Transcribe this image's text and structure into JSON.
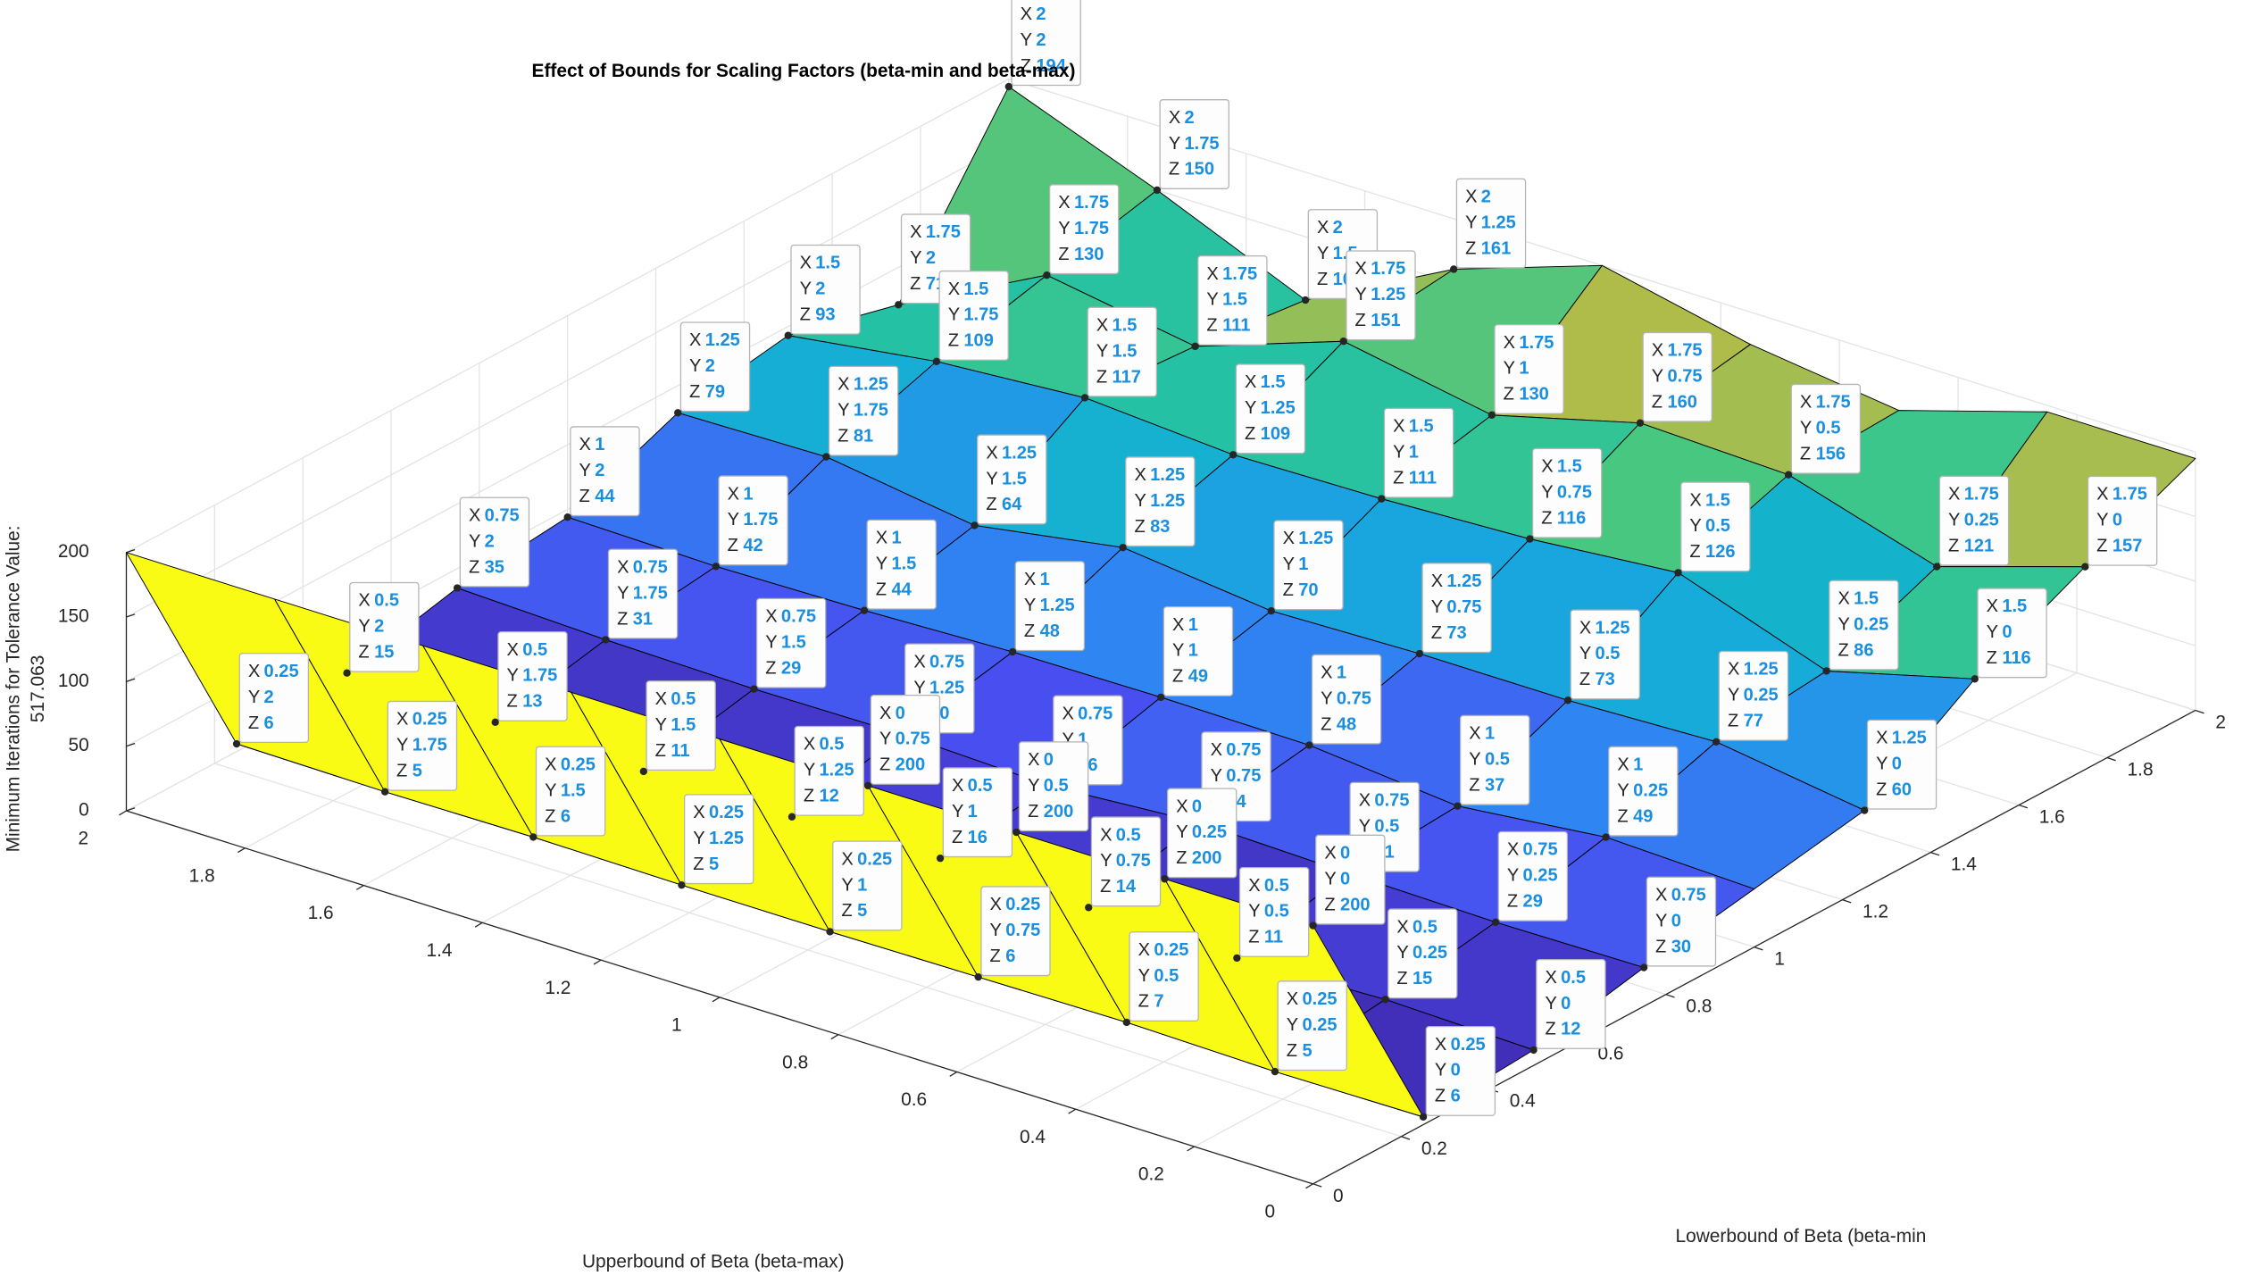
{
  "chart_data": {
    "type": "surface3d",
    "title": "Effect of Bounds for Scaling Factors (beta-min and beta-max)",
    "xlabel": "Lowerbound of Beta (beta-min",
    "ylabel": "Upperbound of Beta (beta-max)",
    "zlabel": [
      "Minimum Iterations for Tolerance Value:",
      "517.063"
    ],
    "x": [
      0,
      0.25,
      0.5,
      0.75,
      1,
      1.25,
      1.5,
      1.75,
      2
    ],
    "y": [
      0,
      0.25,
      0.5,
      0.75,
      1,
      1.25,
      1.5,
      1.75,
      2
    ],
    "z": [
      [
        200,
        200,
        200,
        200,
        200,
        200,
        200,
        200,
        200
      ],
      [
        6,
        5,
        7,
        6,
        5,
        5,
        6,
        5,
        6
      ],
      [
        12,
        15,
        11,
        14,
        16,
        12,
        11,
        13,
        15
      ],
      [
        30,
        29,
        31,
        34,
        26,
        30,
        29,
        31,
        35
      ],
      [
        45,
        49,
        37,
        48,
        49,
        48,
        44,
        42,
        44
      ],
      [
        60,
        77,
        73,
        73,
        70,
        83,
        64,
        81,
        79
      ],
      [
        116,
        86,
        126,
        116,
        111,
        109,
        117,
        109,
        93
      ],
      [
        157,
        121,
        156,
        160,
        130,
        151,
        111,
        130,
        71
      ],
      [
        195,
        195,
        160,
        175,
        200,
        161,
        101,
        150,
        194
      ]
    ],
    "colormap": "parula",
    "edge_color": "#000000",
    "xlim": [
      0,
      2
    ],
    "ylim": [
      0,
      2
    ],
    "zlim": [
      0,
      200
    ],
    "xticks": [
      0,
      0.2,
      0.4,
      0.6,
      0.8,
      1,
      1.2,
      1.4,
      1.6,
      1.8,
      2
    ],
    "yticks": [
      0,
      0.2,
      0.4,
      0.6,
      0.8,
      1,
      1.2,
      1.4,
      1.6,
      1.8,
      2
    ],
    "zticks": [
      0,
      50,
      100,
      150,
      200
    ],
    "grid": true,
    "datatip_labels": [
      "X",
      "Y",
      "Z"
    ],
    "datatips": [
      {
        "x": 2,
        "y": 2,
        "z": 194
      },
      {
        "x": 2,
        "y": 1.75,
        "z": 150
      },
      {
        "x": 2,
        "y": 1.5,
        "z": 101
      },
      {
        "x": 2,
        "y": 1.25,
        "z": 161
      },
      {
        "x": 1.75,
        "y": 2,
        "z": 71
      },
      {
        "x": 1.75,
        "y": 1.75,
        "z": 130
      },
      {
        "x": 1.75,
        "y": 1.5,
        "z": 111
      },
      {
        "x": 1.75,
        "y": 1.25,
        "z": 151
      },
      {
        "x": 1.75,
        "y": 1,
        "z": 130
      },
      {
        "x": 1.75,
        "y": 0.75,
        "z": 160
      },
      {
        "x": 1.75,
        "y": 0.5,
        "z": 156
      },
      {
        "x": 1.75,
        "y": 0.25,
        "z": 121
      },
      {
        "x": 1.75,
        "y": 0,
        "z": 157
      },
      {
        "x": 1.5,
        "y": 2,
        "z": 93
      },
      {
        "x": 1.5,
        "y": 1.75,
        "z": 109
      },
      {
        "x": 1.5,
        "y": 1.5,
        "z": 117
      },
      {
        "x": 1.5,
        "y": 1.25,
        "z": 109
      },
      {
        "x": 1.5,
        "y": 1,
        "z": 111
      },
      {
        "x": 1.5,
        "y": 0.75,
        "z": 116
      },
      {
        "x": 1.5,
        "y": 0.5,
        "z": 126
      },
      {
        "x": 1.5,
        "y": 0.25,
        "z": 86
      },
      {
        "x": 1.5,
        "y": 0,
        "z": 116
      },
      {
        "x": 1.25,
        "y": 2,
        "z": 79
      },
      {
        "x": 1.25,
        "y": 1.75,
        "z": 81
      },
      {
        "x": 1.25,
        "y": 1.5,
        "z": 64
      },
      {
        "x": 1.25,
        "y": 1.25,
        "z": 83
      },
      {
        "x": 1.25,
        "y": 1,
        "z": 70
      },
      {
        "x": 1.25,
        "y": 0.75,
        "z": 73
      },
      {
        "x": 1.25,
        "y": 0.5,
        "z": 73
      },
      {
        "x": 1.25,
        "y": 0.25,
        "z": 77
      },
      {
        "x": 1.25,
        "y": 0,
        "z": 60
      },
      {
        "x": 1,
        "y": 2,
        "z": 44
      },
      {
        "x": 1,
        "y": 1.75,
        "z": 42
      },
      {
        "x": 1,
        "y": 1.5,
        "z": 44
      },
      {
        "x": 1,
        "y": 1.25,
        "z": 48
      },
      {
        "x": 1,
        "y": 1,
        "z": 49
      },
      {
        "x": 1,
        "y": 0.75,
        "z": 48
      },
      {
        "x": 1,
        "y": 0.5,
        "z": 37
      },
      {
        "x": 1,
        "y": 0.25,
        "z": 49
      },
      {
        "x": 0.75,
        "y": 2,
        "z": 35
      },
      {
        "x": 0.75,
        "y": 1.75,
        "z": 31
      },
      {
        "x": 0.75,
        "y": 1.5,
        "z": 29
      },
      {
        "x": 0.75,
        "y": 1.25,
        "z": 30
      },
      {
        "x": 0.75,
        "y": 1,
        "z": 26
      },
      {
        "x": 0.75,
        "y": 0.75,
        "z": 34
      },
      {
        "x": 0.75,
        "y": 0.5,
        "z": 31
      },
      {
        "x": 0.75,
        "y": 0.25,
        "z": 29
      },
      {
        "x": 0.75,
        "y": 0,
        "z": 30
      },
      {
        "x": 0.5,
        "y": 2,
        "z": 15
      },
      {
        "x": 0.5,
        "y": 1.75,
        "z": 13
      },
      {
        "x": 0.5,
        "y": 1.5,
        "z": 11
      },
      {
        "x": 0.5,
        "y": 1.25,
        "z": 12
      },
      {
        "x": 0.5,
        "y": 1,
        "z": 16
      },
      {
        "x": 0.5,
        "y": 0.75,
        "z": 14
      },
      {
        "x": 0.5,
        "y": 0.5,
        "z": 11
      },
      {
        "x": 0.5,
        "y": 0.25,
        "z": 15
      },
      {
        "x": 0.5,
        "y": 0,
        "z": 12
      },
      {
        "x": 0.25,
        "y": 2,
        "z": 6
      },
      {
        "x": 0.25,
        "y": 1.75,
        "z": 5
      },
      {
        "x": 0.25,
        "y": 1.5,
        "z": 6
      },
      {
        "x": 0.25,
        "y": 1.25,
        "z": 5
      },
      {
        "x": 0.25,
        "y": 1,
        "z": 5
      },
      {
        "x": 0.25,
        "y": 0.75,
        "z": 6
      },
      {
        "x": 0.25,
        "y": 0.5,
        "z": 7
      },
      {
        "x": 0.25,
        "y": 0.25,
        "z": 5
      },
      {
        "x": 0.25,
        "y": 0,
        "z": 6
      },
      {
        "x": 0,
        "y": 0.75,
        "z": 200
      },
      {
        "x": 0,
        "y": 0.5,
        "z": 200
      },
      {
        "x": 0,
        "y": 0.25,
        "z": 200
      },
      {
        "x": 0,
        "y": 0,
        "z": 200
      }
    ]
  }
}
